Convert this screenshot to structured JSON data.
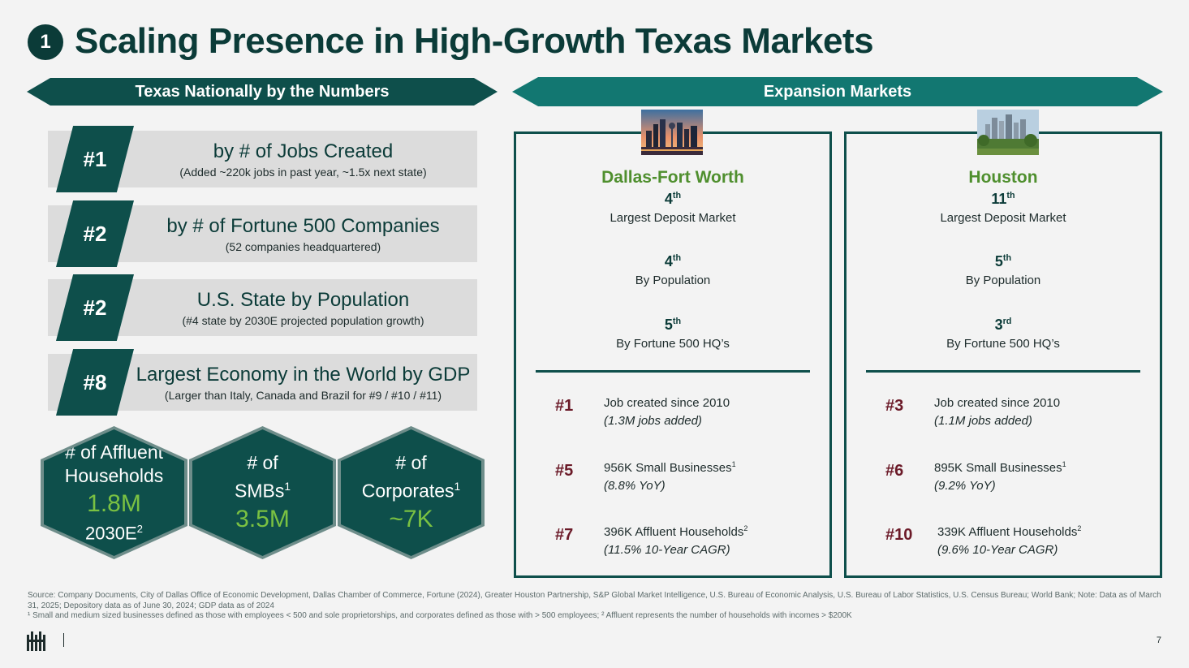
{
  "header": {
    "section_number": "1",
    "title": "Scaling Presence in High-Growth Texas Markets"
  },
  "left_banner": "Texas Nationally by the Numbers",
  "right_banner": "Expansion Markets",
  "rankings": [
    {
      "rank": "#1",
      "main": "by # of Jobs Created",
      "sub": "(Added ~220k jobs in past year, ~1.5x next state)"
    },
    {
      "rank": "#2",
      "main": "by # of Fortune 500 Companies",
      "sub": "(52 companies headquartered)"
    },
    {
      "rank": "#2",
      "main": "U.S. State by Population",
      "sub": "(#4 state by 2030E projected population growth)"
    },
    {
      "rank": "#8",
      "main": "Largest Economy in the World by GDP",
      "sub": "(Larger than Italy, Canada and Brazil for #9 / #10 / #11)"
    }
  ],
  "hexagons": [
    {
      "label1": "# of Affluent",
      "label2": "Households",
      "sup": "",
      "value": "1.8M",
      "foot": "2030E",
      "foot_sup": "2"
    },
    {
      "label1": "# of",
      "label2": "SMBs",
      "sup": "1",
      "value": "3.5M",
      "foot": "",
      "foot_sup": ""
    },
    {
      "label1": "# of",
      "label2": "Corporates",
      "sup": "1",
      "value": "~7K",
      "foot": "",
      "foot_sup": ""
    }
  ],
  "markets": [
    {
      "name": "Dallas-Fort Worth",
      "stats": [
        {
          "rank": "4",
          "suffix": "th",
          "label": "Largest Deposit Market"
        },
        {
          "rank": "4",
          "suffix": "th",
          "label": "By Population"
        },
        {
          "rank": "5",
          "suffix": "th",
          "label": "By Fortune 500 HQ’s"
        }
      ],
      "items": [
        {
          "rank": "#1",
          "line1": "Job created since 2010",
          "sup": "",
          "line2": "(1.3M jobs added)"
        },
        {
          "rank": "#5",
          "line1": "956K Small Businesses",
          "sup": "1",
          "line2": "(8.8% YoY)"
        },
        {
          "rank": "#7",
          "line1": "396K Affluent Households",
          "sup": "2",
          "line2": "(11.5% 10-Year CAGR)"
        }
      ]
    },
    {
      "name": "Houston",
      "stats": [
        {
          "rank": "11",
          "suffix": "th",
          "label": "Largest Deposit Market"
        },
        {
          "rank": "5",
          "suffix": "th",
          "label": "By Population"
        },
        {
          "rank": "3",
          "suffix": "rd",
          "label": "By Fortune 500 HQ’s"
        }
      ],
      "items": [
        {
          "rank": "#3",
          "line1": "Job created since 2010",
          "sup": "",
          "line2": "(1.1M jobs added)"
        },
        {
          "rank": "#6",
          "line1": "895K Small Businesses",
          "sup": "1",
          "line2": "(9.2% YoY)"
        },
        {
          "rank": "#10",
          "line1": "339K Affluent Households",
          "sup": "2",
          "line2": "(9.6% 10-Year CAGR)"
        }
      ]
    }
  ],
  "footnote": {
    "line1": "Source: Company Documents, City of Dallas Office of Economic Development, Dallas Chamber of Commerce, Fortune (2024), Greater Houston Partnership, S&P Global Market Intelligence, U.S. Bureau of Economic Analysis, U.S. Bureau of Labor Statistics, U.S. Census Bureau; World Bank; Note: Data as of March 31, 2025; Depository data as of June 30, 2024; GDP data as of 2024",
    "line2": "¹ Small and medium sized businesses defined as those with employees < 500 and sole proprietorships, and corporates defined as those with > 500 employees; ² Affluent represents the number of households with incomes > $200K"
  },
  "page_number": "7",
  "colors": {
    "dark_teal": "#0e4f4b",
    "teal": "#127771",
    "green": "#7ac142",
    "burgundy": "#6b1a28"
  }
}
